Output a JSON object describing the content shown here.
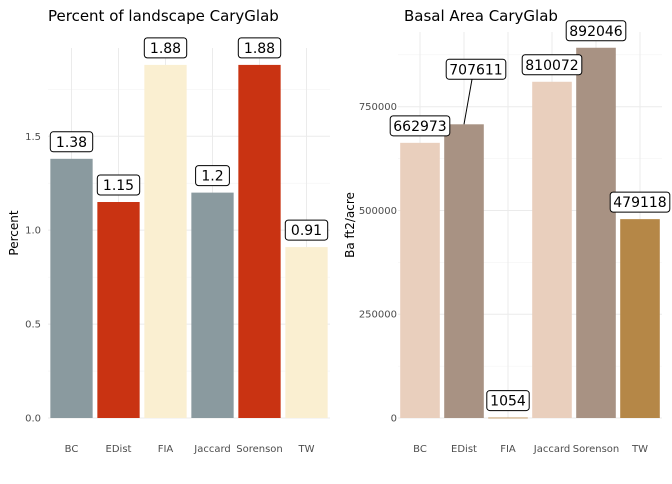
{
  "chart_data": [
    {
      "type": "bar",
      "title": "Percent of landscape  CaryGlab",
      "xlabel": "",
      "ylabel": "Percent",
      "categories": [
        "BC",
        "EDist",
        "FIA",
        "Jaccard",
        "Sorenson",
        "TW"
      ],
      "values": [
        1.38,
        1.15,
        1.88,
        1.2,
        1.88,
        0.91
      ],
      "value_labels": [
        "1.38",
        "1.15",
        "1.88",
        "1.2",
        "1.88",
        "0.91"
      ],
      "colors": [
        "#8a9a9f",
        "#c93312",
        "#faefd1",
        "#8a9a9f",
        "#c93312",
        "#faefd1"
      ],
      "ylim": [
        0,
        1.97
      ],
      "yticks": [
        0,
        0.5,
        1.0,
        1.5
      ],
      "ytick_labels": [
        "0.0",
        "0.5",
        "1.0",
        "1.5"
      ],
      "grid": true,
      "legend": "none"
    },
    {
      "type": "bar",
      "title": "Basal Area  CaryGlab",
      "xlabel": "",
      "ylabel": "Ba ft2/acre",
      "categories": [
        "BC",
        "EDist",
        "FIA",
        "Jaccard",
        "Sorenson",
        "TW"
      ],
      "values": [
        662973,
        707611,
        1054,
        810072,
        892046,
        479118
      ],
      "value_labels": [
        "662973",
        "707611",
        "1054",
        "810072",
        "892046",
        "479118"
      ],
      "colors": [
        "#e9cfbd",
        "#a89283",
        "#b58747",
        "#e9cfbd",
        "#a89283",
        "#b58747"
      ],
      "ylim": [
        0,
        930000
      ],
      "yticks": [
        0,
        250000,
        500000,
        750000
      ],
      "ytick_labels": [
        "0",
        "250000",
        "500000",
        "750000"
      ],
      "grid": true,
      "legend": "none"
    }
  ]
}
